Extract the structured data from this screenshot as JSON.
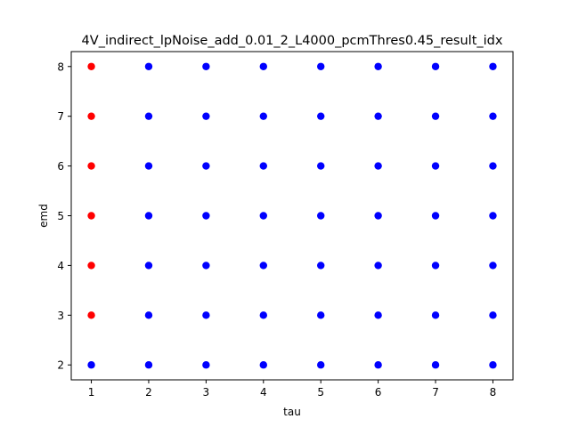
{
  "chart_data": {
    "type": "scatter",
    "title": "4V_indirect_lpNoise_add_0.01_2_L4000_pcmThres0.45_result_idx",
    "xlabel": "tau",
    "ylabel": "emd",
    "xlim": [
      0.65,
      8.35
    ],
    "ylim": [
      1.7,
      8.3
    ],
    "xticks": [
      1,
      2,
      3,
      4,
      5,
      6,
      7,
      8
    ],
    "yticks": [
      2,
      3,
      4,
      5,
      6,
      7,
      8
    ],
    "grid": false,
    "colors": {
      "red": "#ff0000",
      "blue": "#0000ff"
    },
    "points": [
      {
        "x": 1,
        "y": 8,
        "color": "red"
      },
      {
        "x": 1,
        "y": 7,
        "color": "red"
      },
      {
        "x": 1,
        "y": 6,
        "color": "red"
      },
      {
        "x": 1,
        "y": 5,
        "color": "red"
      },
      {
        "x": 1,
        "y": 4,
        "color": "red"
      },
      {
        "x": 1,
        "y": 3,
        "color": "red"
      },
      {
        "x": 1,
        "y": 2,
        "color": "blue"
      },
      {
        "x": 2,
        "y": 8,
        "color": "blue"
      },
      {
        "x": 2,
        "y": 7,
        "color": "blue"
      },
      {
        "x": 2,
        "y": 6,
        "color": "blue"
      },
      {
        "x": 2,
        "y": 5,
        "color": "blue"
      },
      {
        "x": 2,
        "y": 4,
        "color": "blue"
      },
      {
        "x": 2,
        "y": 3,
        "color": "blue"
      },
      {
        "x": 2,
        "y": 2,
        "color": "blue"
      },
      {
        "x": 3,
        "y": 8,
        "color": "blue"
      },
      {
        "x": 3,
        "y": 7,
        "color": "blue"
      },
      {
        "x": 3,
        "y": 6,
        "color": "blue"
      },
      {
        "x": 3,
        "y": 5,
        "color": "blue"
      },
      {
        "x": 3,
        "y": 4,
        "color": "blue"
      },
      {
        "x": 3,
        "y": 3,
        "color": "blue"
      },
      {
        "x": 3,
        "y": 2,
        "color": "blue"
      },
      {
        "x": 4,
        "y": 8,
        "color": "blue"
      },
      {
        "x": 4,
        "y": 7,
        "color": "blue"
      },
      {
        "x": 4,
        "y": 6,
        "color": "blue"
      },
      {
        "x": 4,
        "y": 5,
        "color": "blue"
      },
      {
        "x": 4,
        "y": 4,
        "color": "blue"
      },
      {
        "x": 4,
        "y": 3,
        "color": "blue"
      },
      {
        "x": 4,
        "y": 2,
        "color": "blue"
      },
      {
        "x": 5,
        "y": 8,
        "color": "blue"
      },
      {
        "x": 5,
        "y": 7,
        "color": "blue"
      },
      {
        "x": 5,
        "y": 6,
        "color": "blue"
      },
      {
        "x": 5,
        "y": 5,
        "color": "blue"
      },
      {
        "x": 5,
        "y": 4,
        "color": "blue"
      },
      {
        "x": 5,
        "y": 3,
        "color": "blue"
      },
      {
        "x": 5,
        "y": 2,
        "color": "blue"
      },
      {
        "x": 6,
        "y": 8,
        "color": "blue"
      },
      {
        "x": 6,
        "y": 7,
        "color": "blue"
      },
      {
        "x": 6,
        "y": 6,
        "color": "blue"
      },
      {
        "x": 6,
        "y": 5,
        "color": "blue"
      },
      {
        "x": 6,
        "y": 4,
        "color": "blue"
      },
      {
        "x": 6,
        "y": 3,
        "color": "blue"
      },
      {
        "x": 6,
        "y": 2,
        "color": "blue"
      },
      {
        "x": 7,
        "y": 8,
        "color": "blue"
      },
      {
        "x": 7,
        "y": 7,
        "color": "blue"
      },
      {
        "x": 7,
        "y": 6,
        "color": "blue"
      },
      {
        "x": 7,
        "y": 5,
        "color": "blue"
      },
      {
        "x": 7,
        "y": 4,
        "color": "blue"
      },
      {
        "x": 7,
        "y": 3,
        "color": "blue"
      },
      {
        "x": 7,
        "y": 2,
        "color": "blue"
      },
      {
        "x": 8,
        "y": 8,
        "color": "blue"
      },
      {
        "x": 8,
        "y": 7,
        "color": "blue"
      },
      {
        "x": 8,
        "y": 6,
        "color": "blue"
      },
      {
        "x": 8,
        "y": 5,
        "color": "blue"
      },
      {
        "x": 8,
        "y": 4,
        "color": "blue"
      },
      {
        "x": 8,
        "y": 3,
        "color": "blue"
      },
      {
        "x": 8,
        "y": 2,
        "color": "blue"
      }
    ]
  }
}
